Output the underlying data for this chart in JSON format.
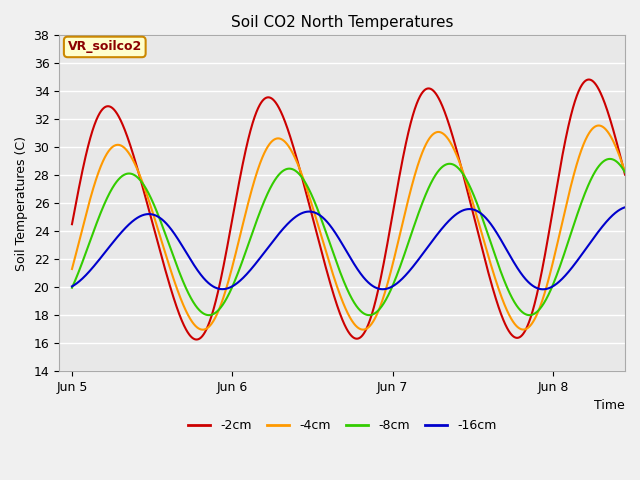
{
  "title": "Soil CO2 North Temperatures",
  "xlabel": "Time",
  "ylabel": "Soil Temperatures (C)",
  "ylim": [
    14,
    38
  ],
  "yticks": [
    14,
    16,
    18,
    20,
    22,
    24,
    26,
    28,
    30,
    32,
    34,
    36,
    38
  ],
  "plot_bg": "#e8e8e8",
  "fig_bg": "#f0f0f0",
  "annotation_text": "VR_soilco2",
  "annotation_bg": "#ffffcc",
  "annotation_border": "#cc8800",
  "series": [
    {
      "label": "-2cm",
      "color": "#cc0000",
      "mean": 24.5,
      "amplitude": 10.0,
      "phase_hours": 0.0,
      "peak_sharpness": 2.5,
      "trend": 1.2
    },
    {
      "label": "-4cm",
      "color": "#ff9900",
      "mean": 23.5,
      "amplitude": 7.0,
      "phase_hours": 1.2,
      "peak_sharpness": 1.5,
      "trend": 0.8
    },
    {
      "label": "-8cm",
      "color": "#33cc00",
      "mean": 23.0,
      "amplitude": 5.0,
      "phase_hours": 2.5,
      "peak_sharpness": 1.0,
      "trend": 0.6
    },
    {
      "label": "-16cm",
      "color": "#0000cc",
      "mean": 22.5,
      "amplitude": 2.5,
      "phase_hours": 5.0,
      "peak_sharpness": 0.7,
      "trend": 0.3
    }
  ],
  "xtick_positions": [
    0,
    1,
    2,
    3
  ],
  "xtick_labels": [
    "Jun 5",
    "Jun 6",
    "Jun 7",
    "Jun 8"
  ],
  "xmin": -0.08,
  "xmax": 3.45,
  "n_points": 2000
}
